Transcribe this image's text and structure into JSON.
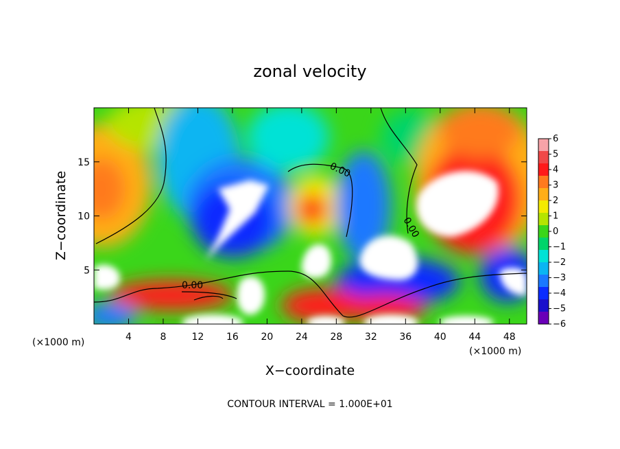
{
  "chart_data": {
    "type": "heatmap",
    "title": "zonal velocity",
    "xlabel": "X−coordinate",
    "ylabel": "Z−coordinate",
    "x_units": "(×1000 m)",
    "x_units_right": "(×1000 m)",
    "xlim": [
      0,
      50
    ],
    "ylim": [
      0,
      20
    ],
    "x_ticks": [
      4,
      8,
      12,
      16,
      20,
      24,
      28,
      32,
      36,
      40,
      44,
      48
    ],
    "y_ticks": [
      5,
      10,
      15
    ],
    "colorbar": {
      "min": -6,
      "max": 6,
      "ticks": [
        "6",
        "5",
        "4",
        "3",
        "2",
        "1",
        "0",
        "−1",
        "−2",
        "−3",
        "−4",
        "−5",
        "−6"
      ],
      "colors": [
        "#f7a3a8",
        "#f04848",
        "#ff1a1a",
        "#ff7a1e",
        "#ffae18",
        "#f4ea00",
        "#b5e400",
        "#3ad61a",
        "#00d46a",
        "#00e2d6",
        "#0ab5f2",
        "#1a78ff",
        "#0b2cff",
        "#1a10cc",
        "#6a00b8"
      ]
    },
    "contour_labels": [
      "0.00",
      "0.00",
      "0.00"
    ],
    "footnote": "CONTOUR INTERVAL = 1.000E+01",
    "saturated_color": "#ffffff"
  }
}
